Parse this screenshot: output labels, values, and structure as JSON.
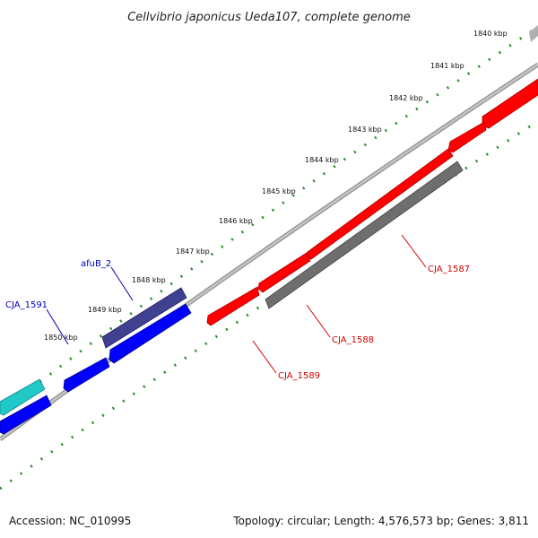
{
  "title": "Cellvibrio japonicus Ueda107, complete genome",
  "accession": "Accession: NC_010995",
  "topology": "Topology: circular; Length: 4,576,573 bp; Genes: 3,811",
  "ticks": [
    "1840 kbp",
    "1841 kbp",
    "1842 kbp",
    "1843 kbp",
    "1844 kbp",
    "1845 kbp",
    "1846 kbp",
    "1847 kbp",
    "1848 kbp",
    "1849 kbp",
    "1850 kbp"
  ],
  "gene_labels": [
    {
      "text": "CJA_1587",
      "color": "#d40000"
    },
    {
      "text": "CJA_1588",
      "color": "#d40000"
    },
    {
      "text": "CJA_1589",
      "color": "#d40000"
    },
    {
      "text": "afuB_2",
      "color": "#0000b0"
    },
    {
      "text": "CJA_1591",
      "color": "#0000b0"
    }
  ],
  "colors": {
    "backbone": "#909090",
    "tick_dots": "#2e8b2e",
    "red_gene": "#ff0000",
    "gray_gene": "#6e6e6e",
    "blue_gene": "#0000ff",
    "navy_gene": "#404090",
    "cyan_gene": "#20c8c8"
  }
}
